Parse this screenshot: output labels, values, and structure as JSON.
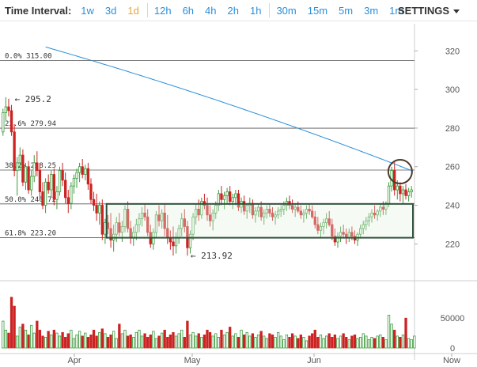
{
  "toolbar": {
    "title": "Time Interval:",
    "intervals": [
      "1w",
      "3d",
      "1d",
      "12h",
      "6h",
      "4h",
      "2h",
      "1h",
      "30m",
      "15m",
      "5m",
      "3m",
      "1m"
    ],
    "active_interval": "1d",
    "settings_label": "SETTINGS",
    "settings_icon": "caret-down-icon"
  },
  "colors": {
    "accent": "#2a8fd8",
    "active": "#e7a53b",
    "up": "#3c9a3c",
    "down": "#cc2222",
    "ma": "#2a8fd8",
    "box": "#2f4f3a"
  },
  "chart_data": [
    {
      "type": "candlestick",
      "ylim": [
        205,
        332
      ],
      "yticks": [
        220,
        240,
        260,
        280,
        300,
        320
      ],
      "grid": false,
      "fib_levels": [
        {
          "label": "0.0% 315.00",
          "value": 315.0
        },
        {
          "label": "23.6% 279.94",
          "value": 279.94
        },
        {
          "label": "38.2% 258.25",
          "value": 258.25
        },
        {
          "label": "50.0% 240.72",
          "value": 240.72
        },
        {
          "label": "61.8% 223.20",
          "value": 223.2
        }
      ],
      "annotations": [
        {
          "label": "← 295.2",
          "value": 295.2,
          "index": 3
        },
        {
          "label": "← 213.92",
          "value": 213.92,
          "index": 65
        }
      ],
      "range_box": {
        "from_index": 37,
        "to_index": 144,
        "low": 223.2,
        "high": 240.72
      },
      "highlight_circle": {
        "index": 140,
        "value": 258.25
      },
      "moving_average": {
        "from_index": 15,
        "start": 322,
        "end": 258
      },
      "candles": [
        [
          278,
          290,
          276,
          288
        ],
        [
          288,
          296,
          284,
          291
        ],
        [
          291,
          295.2,
          286,
          289
        ],
        [
          289,
          292,
          276,
          278
        ],
        [
          278,
          282,
          255,
          258
        ],
        [
          258,
          265,
          245,
          262
        ],
        [
          262,
          270,
          258,
          266
        ],
        [
          266,
          269,
          250,
          252
        ],
        [
          252,
          262,
          248,
          260
        ],
        [
          260,
          263,
          246,
          248
        ],
        [
          248,
          258,
          245,
          255
        ],
        [
          255,
          266,
          252,
          262
        ],
        [
          262,
          268,
          255,
          258
        ],
        [
          258,
          262,
          244,
          247
        ],
        [
          247,
          252,
          238,
          240
        ],
        [
          240,
          254,
          236,
          252
        ],
        [
          252,
          256,
          246,
          248
        ],
        [
          248,
          258,
          244,
          256
        ],
        [
          256,
          259,
          240,
          243
        ],
        [
          243,
          250,
          238,
          247
        ],
        [
          247,
          260,
          245,
          258
        ],
        [
          258,
          262,
          250,
          253
        ],
        [
          253,
          257,
          241,
          244
        ],
        [
          244,
          248,
          236,
          241
        ],
        [
          241,
          252,
          238,
          250
        ],
        [
          250,
          256,
          246,
          254
        ],
        [
          254,
          259,
          249,
          257
        ],
        [
          257,
          262,
          252,
          260
        ],
        [
          260,
          264,
          254,
          256
        ],
        [
          256,
          261,
          253,
          259
        ],
        [
          259,
          262,
          248,
          251
        ],
        [
          251,
          254,
          241,
          243
        ],
        [
          243,
          247,
          237,
          240
        ],
        [
          240,
          246,
          232,
          236
        ],
        [
          236,
          242,
          230,
          240
        ],
        [
          240,
          243,
          222,
          225
        ],
        [
          225,
          233,
          220,
          231
        ],
        [
          231,
          235,
          225,
          228
        ],
        [
          228,
          236,
          218,
          222
        ],
        [
          222,
          230,
          216,
          225
        ],
        [
          225,
          234,
          221,
          231
        ],
        [
          231,
          236,
          224,
          226
        ],
        [
          226,
          232,
          221,
          229
        ],
        [
          229,
          240,
          226,
          238
        ],
        [
          238,
          242,
          226,
          228
        ],
        [
          228,
          232,
          220,
          223
        ],
        [
          223,
          229,
          219,
          226
        ],
        [
          226,
          233,
          222,
          230
        ],
        [
          230,
          236,
          226,
          233
        ],
        [
          233,
          239,
          229,
          236
        ],
        [
          236,
          241,
          232,
          234
        ],
        [
          234,
          238,
          224,
          226
        ],
        [
          226,
          230,
          218,
          220
        ],
        [
          220,
          228,
          217,
          226
        ],
        [
          226,
          237,
          223,
          235
        ],
        [
          235,
          240,
          229,
          232
        ],
        [
          232,
          238,
          228,
          236
        ],
        [
          236,
          241,
          224,
          228
        ],
        [
          228,
          235,
          220,
          223
        ],
        [
          223,
          227,
          217,
          221
        ],
        [
          221,
          229,
          214,
          219
        ],
        [
          219,
          226,
          215,
          223
        ],
        [
          223,
          230,
          220,
          228
        ],
        [
          228,
          236,
          224,
          233
        ],
        [
          233,
          238,
          226,
          229
        ],
        [
          229,
          232,
          213.92,
          218
        ],
        [
          218,
          227,
          215,
          225
        ],
        [
          225,
          236,
          222,
          234
        ],
        [
          234,
          241,
          230,
          238
        ],
        [
          238,
          243,
          232,
          235
        ],
        [
          235,
          244,
          233,
          242
        ],
        [
          242,
          246,
          238,
          240
        ],
        [
          240,
          244,
          232,
          235
        ],
        [
          235,
          240,
          229,
          232
        ],
        [
          232,
          238,
          227,
          236
        ],
        [
          236,
          242,
          233,
          240
        ],
        [
          240,
          248,
          237,
          246
        ],
        [
          246,
          250,
          240,
          243
        ],
        [
          243,
          247,
          238,
          245
        ],
        [
          245,
          249,
          241,
          247
        ],
        [
          247,
          250,
          240,
          242
        ],
        [
          242,
          246,
          238,
          244
        ],
        [
          244,
          248,
          240,
          246
        ],
        [
          246,
          248,
          237,
          239
        ],
        [
          239,
          244,
          236,
          242
        ],
        [
          242,
          245,
          235,
          237
        ],
        [
          237,
          241,
          233,
          240
        ],
        [
          240,
          244,
          236,
          241
        ],
        [
          241,
          243,
          233,
          235
        ],
        [
          235,
          239,
          231,
          237
        ],
        [
          237,
          241,
          234,
          239
        ],
        [
          239,
          242,
          232,
          234
        ],
        [
          234,
          238,
          230,
          236
        ],
        [
          236,
          240,
          233,
          238
        ],
        [
          238,
          241,
          234,
          236
        ],
        [
          236,
          239,
          232,
          234
        ],
        [
          234,
          237,
          230,
          235
        ],
        [
          235,
          239,
          233,
          237
        ],
        [
          237,
          240,
          234,
          238
        ],
        [
          238,
          242,
          235,
          240
        ],
        [
          240,
          244,
          237,
          242
        ],
        [
          242,
          245,
          238,
          240
        ],
        [
          240,
          243,
          236,
          238
        ],
        [
          238,
          241,
          234,
          239
        ],
        [
          239,
          242,
          236,
          237
        ],
        [
          237,
          240,
          233,
          235
        ],
        [
          235,
          238,
          231,
          236
        ],
        [
          236,
          240,
          233,
          238
        ],
        [
          238,
          241,
          235,
          237
        ],
        [
          237,
          240,
          233,
          234
        ],
        [
          234,
          237,
          228,
          230
        ],
        [
          230,
          234,
          225,
          227
        ],
        [
          227,
          231,
          223,
          229
        ],
        [
          229,
          233,
          225,
          231
        ],
        [
          231,
          236,
          228,
          233
        ],
        [
          233,
          237,
          229,
          230
        ],
        [
          230,
          233,
          222,
          224
        ],
        [
          224,
          228,
          219,
          221
        ],
        [
          221,
          226,
          218,
          224
        ],
        [
          224,
          229,
          221,
          226
        ],
        [
          226,
          230,
          223,
          225
        ],
        [
          225,
          228,
          220,
          223
        ],
        [
          223,
          228,
          221,
          226
        ],
        [
          226,
          229,
          222,
          224
        ],
        [
          224,
          227,
          220,
          222
        ],
        [
          222,
          226,
          219,
          225
        ],
        [
          225,
          230,
          223,
          228
        ],
        [
          228,
          232,
          225,
          230
        ],
        [
          230,
          234,
          227,
          232
        ],
        [
          232,
          236,
          229,
          234
        ],
        [
          234,
          238,
          231,
          236
        ],
        [
          236,
          240,
          233,
          235
        ],
        [
          235,
          238,
          232,
          237
        ],
        [
          237,
          241,
          234,
          239
        ],
        [
          239,
          242,
          235,
          238
        ],
        [
          238,
          242,
          235,
          241
        ],
        [
          241,
          252,
          239,
          250
        ],
        [
          250,
          260,
          247,
          258
        ],
        [
          258,
          263,
          245,
          248
        ],
        [
          248,
          253,
          243,
          250
        ],
        [
          250,
          252,
          242,
          246
        ],
        [
          246,
          250,
          241,
          248
        ],
        [
          248,
          251,
          243,
          245
        ],
        [
          245,
          249,
          242,
          247
        ],
        [
          247,
          250,
          244,
          248
        ]
      ]
    },
    {
      "type": "bar",
      "yticks": [
        0,
        50000
      ],
      "ylim": [
        0,
        90000
      ],
      "x_labels": [
        "Apr",
        "May",
        "Jun",
        "Now"
      ],
      "values": [
        45000,
        30000,
        25000,
        85000,
        70000,
        20000,
        35000,
        40000,
        30000,
        22000,
        38000,
        25000,
        45000,
        30000,
        20000,
        18000,
        28000,
        22000,
        30000,
        25000,
        20000,
        26000,
        18000,
        24000,
        30000,
        16000,
        22000,
        28000,
        20000,
        25000,
        18000,
        22000,
        30000,
        20000,
        26000,
        32000,
        24000,
        18000,
        22000,
        28000,
        16000,
        40000,
        24000,
        30000,
        20000,
        22000,
        18000,
        26000,
        30000,
        20000,
        24000,
        18000,
        22000,
        28000,
        16000,
        20000,
        25000,
        30000,
        18000,
        22000,
        26000,
        20000,
        24000,
        30000,
        18000,
        45000,
        22000,
        26000,
        20000,
        24000,
        18000,
        22000,
        30000,
        26000,
        20000,
        24000,
        18000,
        30000,
        22000,
        26000,
        35000,
        20000,
        24000,
        18000,
        30000,
        22000,
        26000,
        20000,
        24000,
        18000,
        22000,
        28000,
        20000,
        16000,
        24000,
        22000,
        18000,
        26000,
        20000,
        14000,
        22000,
        18000,
        24000,
        20000,
        16000,
        22000,
        18000,
        12000,
        20000,
        24000,
        30000,
        18000,
        22000,
        16000,
        20000,
        24000,
        18000,
        22000,
        16000,
        20000,
        24000,
        18000,
        14000,
        20000,
        22000,
        16000,
        18000,
        24000,
        20000,
        14000,
        18000,
        16000,
        20000,
        22000,
        18000,
        14000,
        55000,
        40000,
        30000,
        20000,
        18000,
        22000,
        50000,
        16000,
        14000,
        20000
      ]
    }
  ]
}
